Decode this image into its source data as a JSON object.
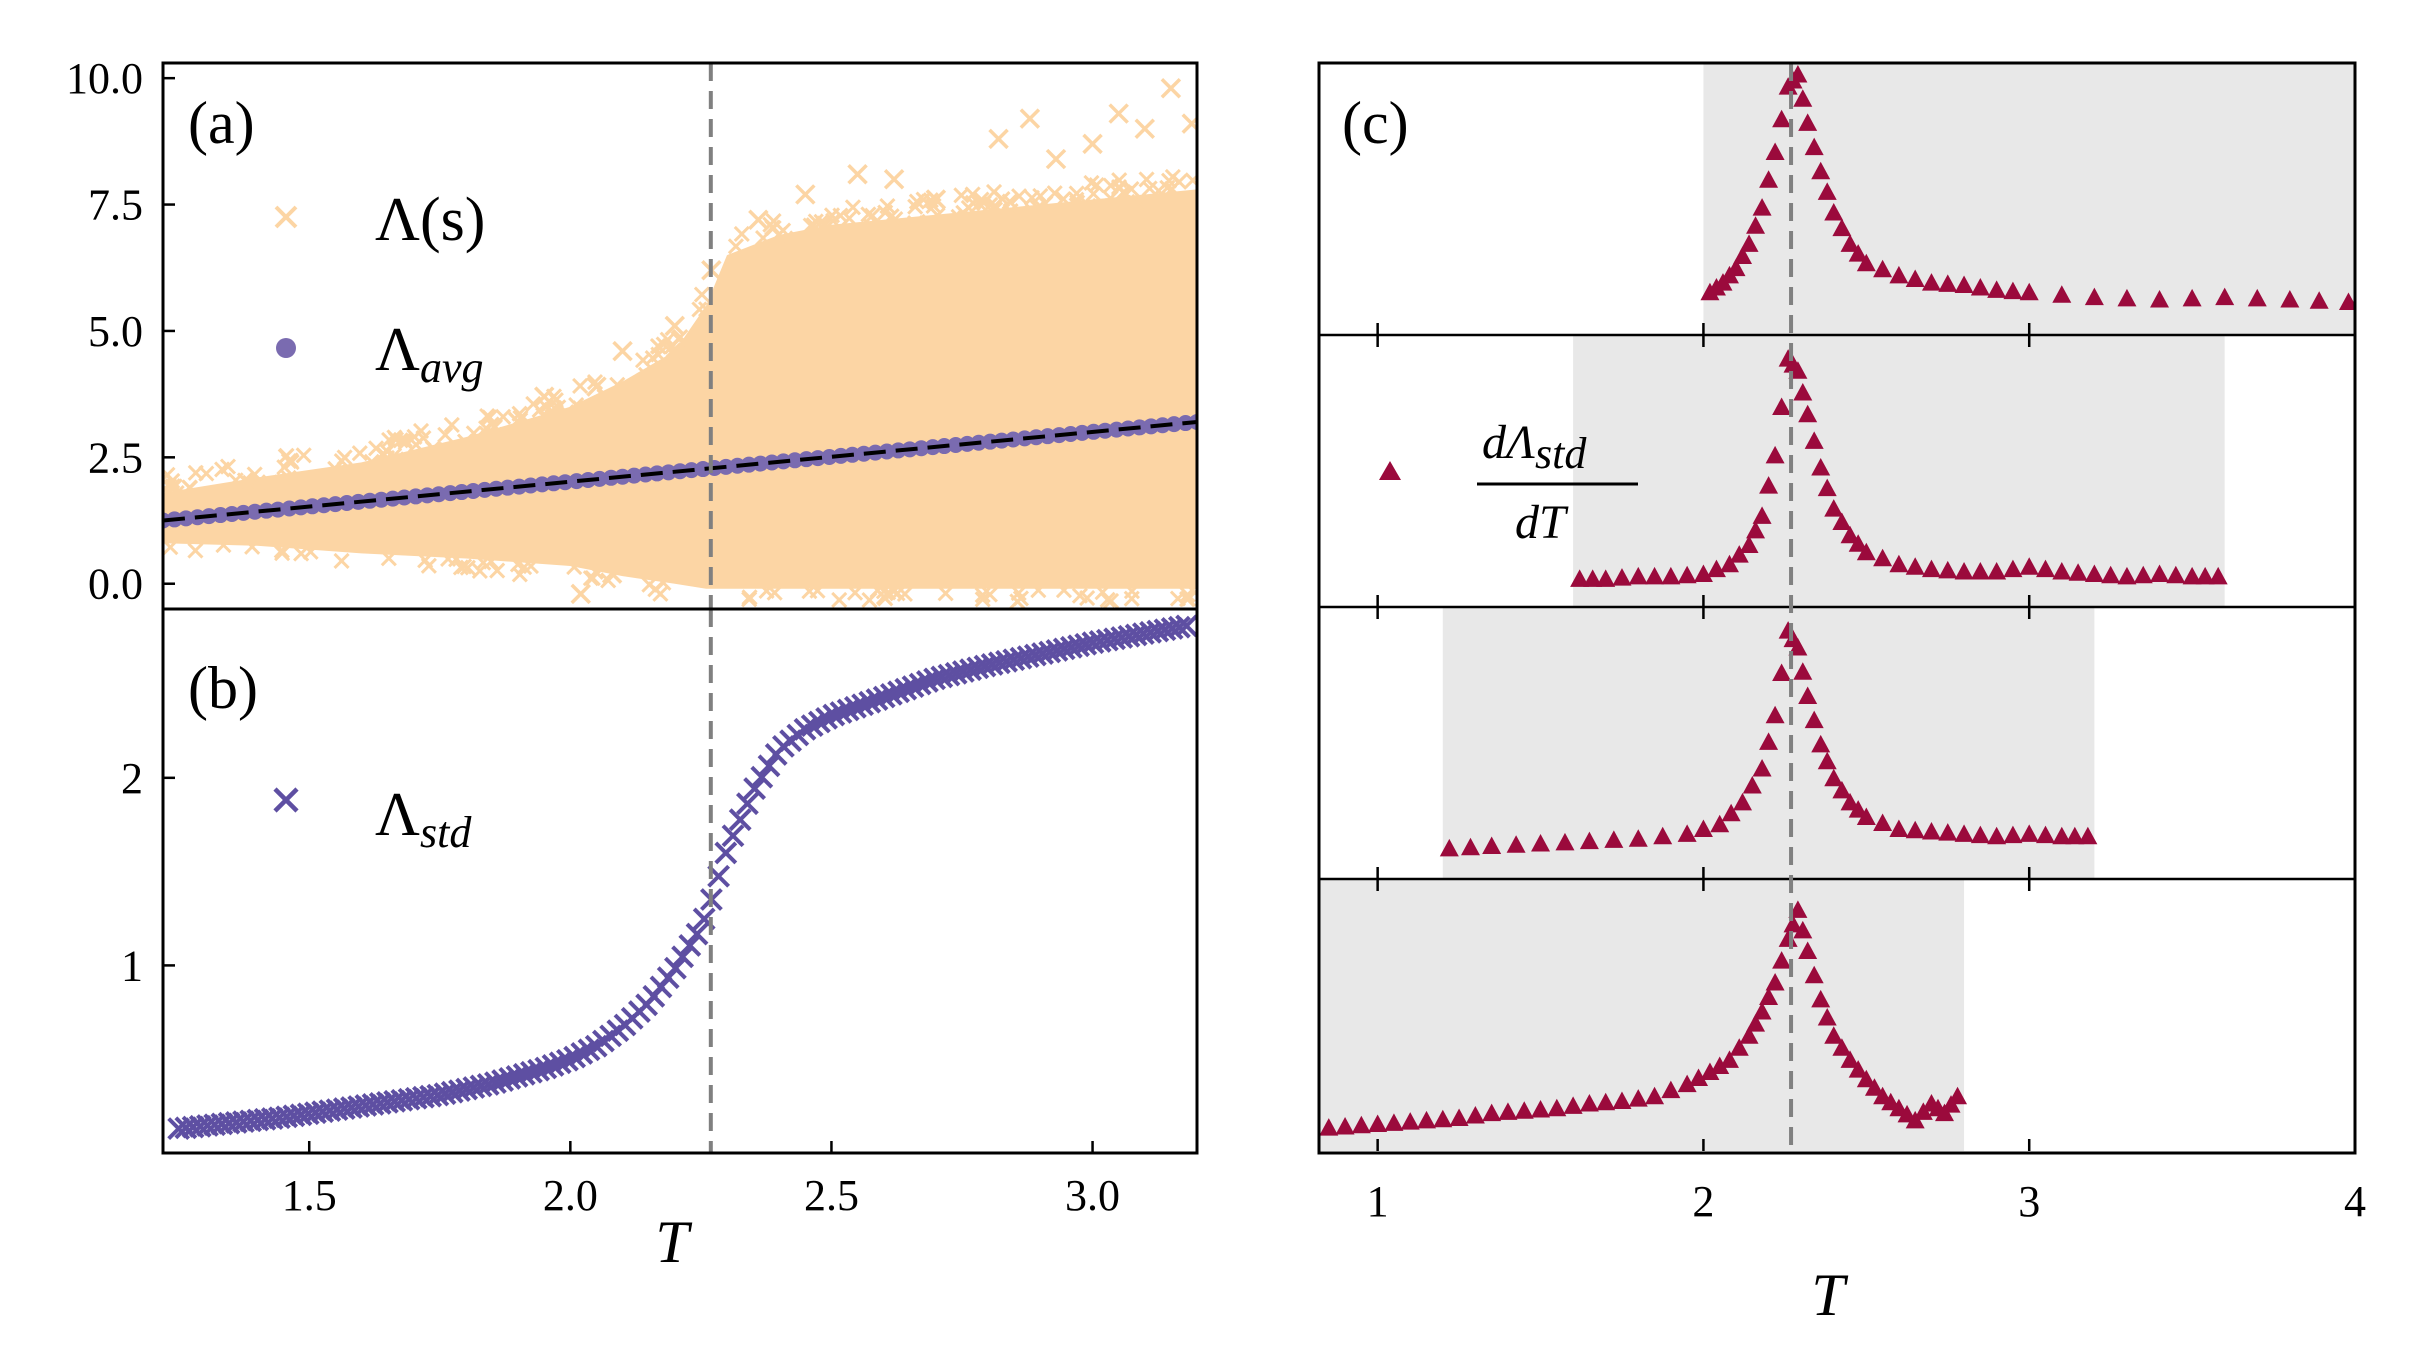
{
  "chart_data": [
    {
      "panel": "(a)",
      "type": "scatter",
      "xlabel": "",
      "ylabel": "",
      "xlim": [
        1.22,
        3.2
      ],
      "ylim": [
        -0.5,
        10.3
      ],
      "yticks": [
        0.0,
        2.5,
        5.0,
        7.5,
        10.0
      ],
      "ytick_labels": [
        "0.0",
        "2.5",
        "5.0",
        "7.5",
        "10.0"
      ],
      "reference_line_x": 2.269,
      "colors": {
        "samples": "#fcd5a4",
        "avg": "#7a6bb0",
        "fit": "#000000",
        "ref": "#808080"
      },
      "legend": [
        {
          "name": "Λ(s)",
          "marker": "x",
          "color": "#fcd5a4"
        },
        {
          "name": "Λ",
          "sub": "avg",
          "marker": "o",
          "color": "#7a6bb0"
        }
      ],
      "avg_line": {
        "x": [
          1.22,
          3.2
        ],
        "y": [
          1.25,
          3.2
        ]
      },
      "sample_band": {
        "x": [
          1.22,
          1.4,
          1.6,
          1.8,
          2.0,
          2.1,
          2.2,
          2.26,
          2.3,
          2.4,
          2.5,
          2.6,
          2.8,
          3.0,
          3.2
        ],
        "lower": [
          0.8,
          0.75,
          0.6,
          0.5,
          0.35,
          0.15,
          0.0,
          -0.1,
          -0.1,
          -0.1,
          -0.1,
          -0.1,
          -0.1,
          -0.1,
          -0.1
        ],
        "upper": [
          1.8,
          2.1,
          2.4,
          2.9,
          3.5,
          4.0,
          4.6,
          5.5,
          6.5,
          6.9,
          7.1,
          7.2,
          7.4,
          7.6,
          7.8
        ]
      },
      "outliers": [
        [
          2.27,
          6.2
        ],
        [
          2.36,
          7.2
        ],
        [
          2.45,
          7.7
        ],
        [
          2.55,
          8.1
        ],
        [
          2.62,
          8.0
        ],
        [
          2.7,
          7.6
        ],
        [
          2.82,
          8.8
        ],
        [
          2.88,
          9.2
        ],
        [
          2.93,
          8.4
        ],
        [
          3.0,
          8.7
        ],
        [
          3.05,
          9.3
        ],
        [
          3.1,
          9.0
        ],
        [
          3.15,
          9.8
        ],
        [
          3.19,
          9.1
        ],
        [
          2.1,
          4.6
        ],
        [
          2.05,
          3.9
        ],
        [
          2.2,
          5.1
        ],
        [
          1.95,
          3.7
        ],
        [
          2.02,
          -0.2
        ],
        [
          2.08,
          0.2
        ],
        [
          1.9,
          3.2
        ]
      ]
    },
    {
      "panel": "(b)",
      "type": "scatter",
      "xlabel": "T",
      "ylabel": "",
      "xlim": [
        1.22,
        3.2
      ],
      "ylim": [
        0.0,
        2.9
      ],
      "xticks": [
        1.5,
        2.0,
        2.5,
        3.0
      ],
      "xtick_labels": [
        "1.5",
        "2.0",
        "2.5",
        "3.0"
      ],
      "yticks": [
        1,
        2
      ],
      "ytick_labels": [
        "1",
        "2"
      ],
      "reference_line_x": 2.269,
      "legend": [
        {
          "name": "Λ",
          "sub": "std",
          "marker": "x",
          "color": "#5e4fa2"
        }
      ],
      "x": [
        1.25,
        1.35,
        1.45,
        1.55,
        1.65,
        1.75,
        1.85,
        1.95,
        2.0,
        2.05,
        2.1,
        2.15,
        2.2,
        2.25,
        2.27,
        2.3,
        2.35,
        2.4,
        2.45,
        2.5,
        2.6,
        2.7,
        2.8,
        2.9,
        3.0,
        3.1,
        3.18
      ],
      "y": [
        0.13,
        0.16,
        0.19,
        0.23,
        0.27,
        0.31,
        0.37,
        0.45,
        0.5,
        0.57,
        0.67,
        0.8,
        0.98,
        1.2,
        1.35,
        1.62,
        1.93,
        2.15,
        2.26,
        2.33,
        2.43,
        2.53,
        2.6,
        2.66,
        2.72,
        2.77,
        2.81
      ]
    },
    {
      "panel": "(c)",
      "type": "scatter",
      "xlabel": "T",
      "ylabel": "",
      "xlim": [
        0.82,
        4.0
      ],
      "xticks": [
        1,
        2,
        3,
        4
      ],
      "xtick_labels": [
        "1",
        "2",
        "3",
        "4"
      ],
      "reference_line_x": 2.269,
      "legend": [
        {
          "numerator": "dΛ",
          "sub": "std",
          "denominator": "dT",
          "marker": "^",
          "color": "#9b0a3c"
        }
      ],
      "subplots": [
        {
          "range": [
            2.0,
            4.0
          ],
          "x": [
            2.02,
            2.06,
            2.1,
            2.14,
            2.18,
            2.22,
            2.26,
            2.29,
            2.32,
            2.36,
            2.4,
            2.45,
            2.5,
            2.6,
            2.7,
            2.8,
            2.9,
            3.0,
            3.2,
            3.4,
            3.6,
            3.8,
            3.98
          ],
          "y": [
            0.1,
            0.14,
            0.2,
            0.3,
            0.45,
            0.68,
            0.95,
            1.0,
            0.8,
            0.6,
            0.43,
            0.3,
            0.22,
            0.17,
            0.14,
            0.13,
            0.11,
            0.1,
            0.08,
            0.07,
            0.08,
            0.07,
            0.06
          ]
        },
        {
          "range": [
            1.6,
            3.6
          ],
          "x": [
            1.62,
            1.7,
            1.8,
            1.9,
            2.0,
            2.08,
            2.14,
            2.18,
            2.22,
            2.26,
            2.29,
            2.32,
            2.36,
            2.4,
            2.45,
            2.5,
            2.6,
            2.7,
            2.8,
            2.9,
            3.0,
            3.1,
            3.2,
            3.3,
            3.4,
            3.5,
            3.58
          ],
          "y": [
            0.04,
            0.04,
            0.05,
            0.05,
            0.06,
            0.1,
            0.18,
            0.3,
            0.55,
            0.95,
            0.9,
            0.72,
            0.5,
            0.33,
            0.22,
            0.15,
            0.1,
            0.08,
            0.07,
            0.07,
            0.09,
            0.07,
            0.06,
            0.05,
            0.06,
            0.05,
            0.05
          ]
        },
        {
          "range": [
            1.2,
            3.2
          ],
          "x": [
            1.22,
            1.35,
            1.5,
            1.65,
            1.8,
            1.95,
            2.05,
            2.12,
            2.18,
            2.22,
            2.26,
            2.29,
            2.32,
            2.36,
            2.4,
            2.45,
            2.5,
            2.6,
            2.7,
            2.8,
            2.9,
            3.0,
            3.1,
            3.18
          ],
          "y": [
            0.05,
            0.06,
            0.07,
            0.08,
            0.09,
            0.11,
            0.15,
            0.24,
            0.38,
            0.6,
            0.95,
            0.88,
            0.68,
            0.48,
            0.34,
            0.24,
            0.18,
            0.13,
            0.12,
            0.11,
            0.1,
            0.11,
            0.1,
            0.1
          ]
        },
        {
          "range": [
            0.82,
            2.8
          ],
          "x": [
            0.85,
            0.95,
            1.05,
            1.15,
            1.25,
            1.35,
            1.45,
            1.55,
            1.65,
            1.75,
            1.85,
            1.95,
            2.02,
            2.08,
            2.14,
            2.18,
            2.22,
            2.26,
            2.29,
            2.32,
            2.36,
            2.4,
            2.45,
            2.5,
            2.55,
            2.6,
            2.65,
            2.7,
            2.74,
            2.78
          ],
          "y": [
            0.02,
            0.03,
            0.04,
            0.05,
            0.06,
            0.08,
            0.09,
            0.1,
            0.12,
            0.13,
            0.15,
            0.2,
            0.25,
            0.3,
            0.4,
            0.5,
            0.62,
            0.8,
            0.92,
            0.75,
            0.55,
            0.4,
            0.3,
            0.22,
            0.15,
            0.1,
            0.05,
            0.12,
            0.08,
            0.15
          ]
        }
      ]
    }
  ]
}
